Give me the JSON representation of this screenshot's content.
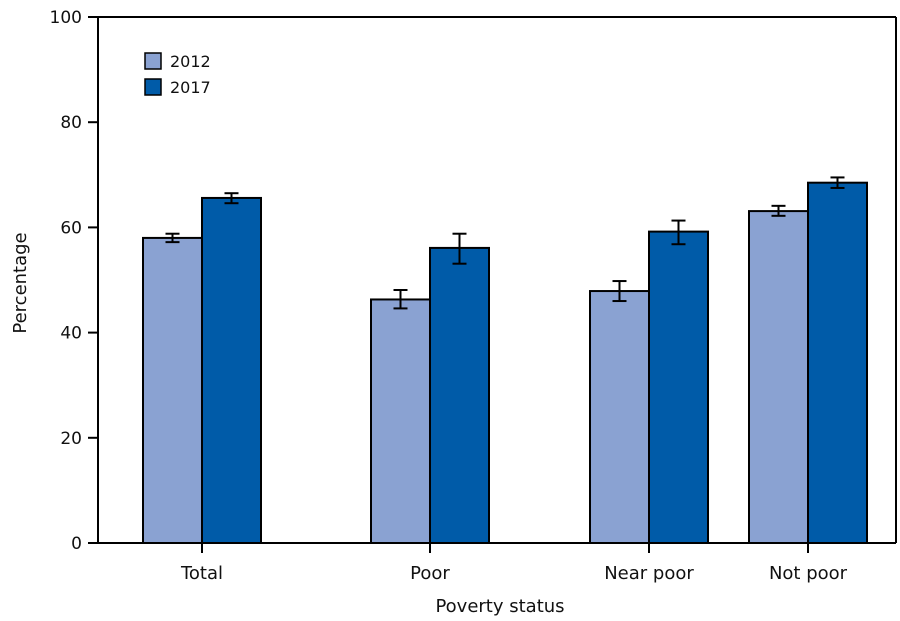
{
  "chart_data": {
    "type": "bar",
    "categories": [
      "Total",
      "Poor",
      "Near poor",
      "Not poor"
    ],
    "series": [
      {
        "name": "2012",
        "color": "#8aa2d2",
        "values": [
          58.0,
          46.3,
          47.9,
          63.1
        ],
        "ci_low": [
          57.2,
          44.6,
          46.0,
          62.2
        ],
        "ci_high": [
          58.8,
          48.1,
          49.8,
          64.1
        ]
      },
      {
        "name": "2017",
        "color": "#005ba8",
        "values": [
          65.6,
          56.1,
          59.2,
          68.5
        ],
        "ci_low": [
          64.6,
          53.1,
          56.8,
          67.5
        ],
        "ci_high": [
          66.5,
          58.8,
          61.3,
          69.5
        ]
      }
    ],
    "xlabel": "Poverty status",
    "ylabel": "Percentage",
    "ylim": [
      0,
      100
    ],
    "yticks": [
      "0",
      "20",
      "40",
      "60",
      "80",
      "100"
    ],
    "grid": false,
    "legend_position": "top-left"
  }
}
